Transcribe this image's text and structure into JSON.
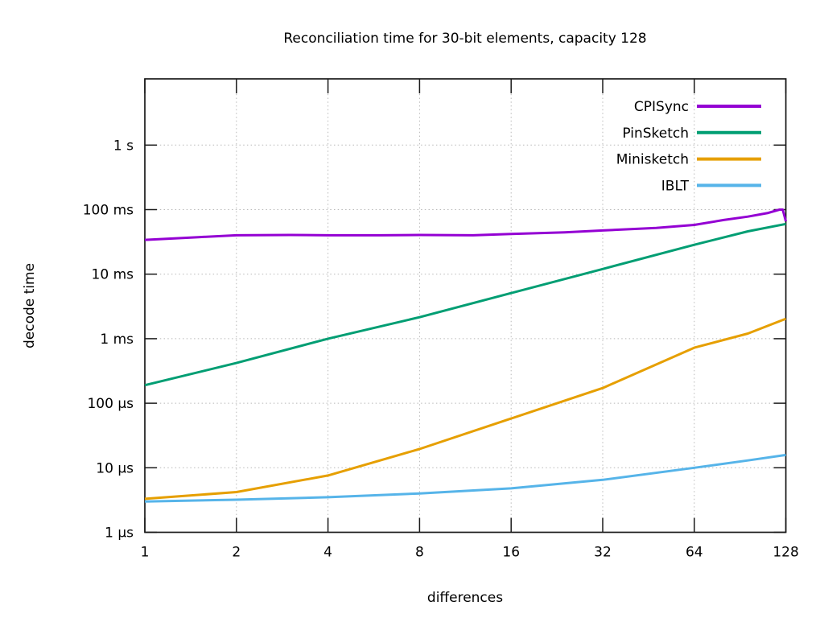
{
  "page": {
    "background": "#ffffff"
  },
  "chart_data": {
    "type": "line",
    "title": "Reconciliation time for 30-bit elements, capacity 128",
    "xlabel": "differences",
    "ylabel": "decode time",
    "x_scale": "log2",
    "y_scale": "log10",
    "grid": true,
    "legend_position": "top-right-inside",
    "xlim": [
      1,
      128
    ],
    "ylim": [
      "1 µs",
      "~10 s"
    ],
    "x_ticks": [
      1,
      2,
      4,
      8,
      16,
      32,
      64,
      128
    ],
    "x_tick_labels": [
      "1",
      "2",
      "4",
      "8",
      "16",
      "32",
      "64",
      "128"
    ],
    "y_ticks_us": [
      1,
      10,
      100,
      1000,
      10000,
      100000,
      1000000
    ],
    "y_tick_labels": [
      "1 µs",
      "10 µs",
      "100 µs",
      "1 ms",
      "10 ms",
      "100 ms",
      "1 s"
    ],
    "grid_color": "#b8b8b8",
    "border_color": "#1a1a1a",
    "series": [
      {
        "name": "PinSketch",
        "color": "#009e73",
        "points_x_us": [
          [
            1,
            190
          ],
          [
            2,
            420
          ],
          [
            4,
            1000
          ],
          [
            8,
            2150
          ],
          [
            16,
            5100
          ],
          [
            32,
            12000
          ],
          [
            64,
            28500
          ],
          [
            96,
            46000
          ],
          [
            128,
            60000
          ]
        ]
      },
      {
        "name": "Minisketch",
        "color": "#e69f00",
        "points_x_us": [
          [
            1,
            3.3
          ],
          [
            2,
            4.2
          ],
          [
            4,
            7.6
          ],
          [
            8,
            19.5
          ],
          [
            16,
            58
          ],
          [
            32,
            172
          ],
          [
            64,
            725
          ],
          [
            96,
            1200
          ],
          [
            128,
            2040
          ]
        ]
      },
      {
        "name": "IBLT",
        "color": "#56b4e9",
        "points_x_us": [
          [
            1,
            3.0
          ],
          [
            2,
            3.2
          ],
          [
            4,
            3.5
          ],
          [
            8,
            4.0
          ],
          [
            16,
            4.8
          ],
          [
            32,
            6.5
          ],
          [
            64,
            10.0
          ],
          [
            96,
            13.0
          ],
          [
            128,
            15.8
          ]
        ]
      },
      {
        "name": "CPISync",
        "color": "#9400d3",
        "points_x_us": [
          [
            1,
            34000
          ],
          [
            1.5,
            37500
          ],
          [
            2,
            40000
          ],
          [
            3,
            40500
          ],
          [
            4,
            40000
          ],
          [
            6,
            40000
          ],
          [
            8,
            40500
          ],
          [
            12,
            40000
          ],
          [
            16,
            42000
          ],
          [
            24,
            44500
          ],
          [
            32,
            47500
          ],
          [
            48,
            52000
          ],
          [
            64,
            58000
          ],
          [
            80,
            69000
          ],
          [
            96,
            78000
          ],
          [
            112,
            89000
          ],
          [
            122,
            100000
          ],
          [
            125,
            100000
          ],
          [
            128,
            66000
          ]
        ]
      }
    ],
    "legend_order": [
      "CPISync",
      "PinSketch",
      "Minisketch",
      "IBLT"
    ]
  }
}
